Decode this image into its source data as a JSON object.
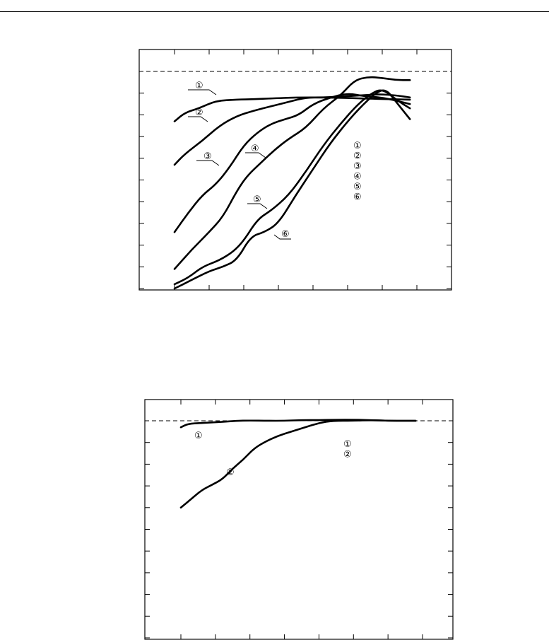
{
  "chart_data": [
    {
      "type": "line",
      "title": "",
      "xlabel": "",
      "ylabel": "",
      "x_ticks": 8,
      "y_ticks": 10,
      "reference_line": "dashed",
      "legend": {
        "placement": "right-center",
        "entries": [
          "①",
          "②",
          "③",
          "④",
          "⑤",
          "⑥"
        ]
      },
      "series": [
        {
          "label": "①",
          "values": [
            [
              0.0,
              0.77
            ],
            [
              0.3,
              0.81
            ],
            [
              0.7,
              0.83
            ],
            [
              1.2,
              0.865
            ],
            [
              1.8,
              0.87
            ],
            [
              2.3,
              0.872
            ],
            [
              2.8,
              0.876
            ],
            [
              3.5,
              0.88
            ],
            [
              4.5,
              0.88
            ],
            [
              5.5,
              0.875
            ],
            [
              6.2,
              0.872
            ],
            [
              6.8,
              0.87
            ]
          ]
        },
        {
          "label": "②",
          "values": [
            [
              0.0,
              0.57
            ],
            [
              0.3,
              0.62
            ],
            [
              0.8,
              0.68
            ],
            [
              1.3,
              0.75
            ],
            [
              1.8,
              0.795
            ],
            [
              2.3,
              0.82
            ],
            [
              2.8,
              0.84
            ],
            [
              3.3,
              0.86
            ],
            [
              3.8,
              0.88
            ],
            [
              4.3,
              0.88
            ],
            [
              4.8,
              0.884
            ],
            [
              5.4,
              0.89
            ],
            [
              5.9,
              0.895
            ],
            [
              6.4,
              0.89
            ],
            [
              6.8,
              0.88
            ]
          ]
        },
        {
          "label": "③",
          "values": [
            [
              0.0,
              0.26
            ],
            [
              0.4,
              0.35
            ],
            [
              0.8,
              0.43
            ],
            [
              1.2,
              0.48
            ],
            [
              1.6,
              0.56
            ],
            [
              2.0,
              0.66
            ],
            [
              2.4,
              0.72
            ],
            [
              2.8,
              0.76
            ],
            [
              3.2,
              0.78
            ],
            [
              3.6,
              0.8
            ],
            [
              4.0,
              0.85
            ],
            [
              4.5,
              0.88
            ],
            [
              5.0,
              0.9
            ],
            [
              5.5,
              0.885
            ],
            [
              6.0,
              0.88
            ],
            [
              6.8,
              0.85
            ]
          ]
        },
        {
          "label": "④",
          "values": [
            [
              0.0,
              0.09
            ],
            [
              0.5,
              0.18
            ],
            [
              1.0,
              0.26
            ],
            [
              1.4,
              0.33
            ],
            [
              1.8,
              0.45
            ],
            [
              2.1,
              0.52
            ],
            [
              2.5,
              0.58
            ],
            [
              2.9,
              0.64
            ],
            [
              3.3,
              0.69
            ],
            [
              3.8,
              0.74
            ],
            [
              4.3,
              0.83
            ],
            [
              4.8,
              0.89
            ],
            [
              5.2,
              0.96
            ],
            [
              5.6,
              0.975
            ],
            [
              6.0,
              0.97
            ],
            [
              6.4,
              0.96
            ],
            [
              6.8,
              0.96
            ]
          ]
        },
        {
          "label": "⑤",
          "values": [
            [
              0.0,
              0.02
            ],
            [
              0.4,
              0.05
            ],
            [
              0.8,
              0.1
            ],
            [
              1.3,
              0.13
            ],
            [
              1.7,
              0.17
            ],
            [
              2.0,
              0.22
            ],
            [
              2.4,
              0.32
            ],
            [
              2.8,
              0.36
            ],
            [
              3.3,
              0.43
            ],
            [
              3.8,
              0.54
            ],
            [
              4.3,
              0.66
            ],
            [
              4.8,
              0.76
            ],
            [
              5.3,
              0.85
            ],
            [
              5.7,
              0.9
            ],
            [
              6.0,
              0.92
            ],
            [
              6.4,
              0.87
            ],
            [
              6.8,
              0.83
            ]
          ]
        },
        {
          "label": "⑥",
          "values": [
            [
              0.0,
              0.0
            ],
            [
              0.5,
              0.04
            ],
            [
              1.0,
              0.08
            ],
            [
              1.4,
              0.1
            ],
            [
              1.8,
              0.13
            ],
            [
              2.2,
              0.24
            ],
            [
              2.6,
              0.26
            ],
            [
              3.0,
              0.3
            ],
            [
              3.5,
              0.43
            ],
            [
              4.0,
              0.55
            ],
            [
              4.5,
              0.67
            ],
            [
              5.0,
              0.77
            ],
            [
              5.4,
              0.84
            ],
            [
              5.8,
              0.9
            ],
            [
              6.1,
              0.92
            ],
            [
              6.4,
              0.86
            ],
            [
              6.8,
              0.78
            ]
          ]
        }
      ]
    },
    {
      "type": "line",
      "title": "",
      "xlabel": "",
      "ylabel": "",
      "x_ticks": 8,
      "y_ticks": 10,
      "reference_line": "dashed",
      "legend": {
        "placement": "right-center",
        "entries": [
          "①",
          "②"
        ]
      },
      "series": [
        {
          "label": "①",
          "values": [
            [
              0.0,
              0.97
            ],
            [
              0.2,
              0.986
            ],
            [
              0.6,
              0.99
            ],
            [
              1.2,
              0.995
            ],
            [
              1.6,
              1.0
            ],
            [
              2.0,
              1.001
            ],
            [
              2.5,
              1.0
            ],
            [
              3.0,
              1.0
            ],
            [
              3.5,
              1.003
            ],
            [
              4.0,
              1.003
            ],
            [
              4.5,
              1.005
            ],
            [
              5.0,
              1.005
            ],
            [
              5.5,
              1.003
            ],
            [
              6.0,
              1.0
            ],
            [
              6.5,
              1.0
            ],
            [
              6.8,
              1.0
            ]
          ]
        },
        {
          "label": "②",
          "values": [
            [
              0.0,
              0.6
            ],
            [
              0.3,
              0.64
            ],
            [
              0.6,
              0.68
            ],
            [
              0.9,
              0.705
            ],
            [
              1.2,
              0.73
            ],
            [
              1.5,
              0.78
            ],
            [
              1.8,
              0.82
            ],
            [
              2.1,
              0.87
            ],
            [
              2.4,
              0.9
            ],
            [
              2.8,
              0.93
            ],
            [
              3.2,
              0.95
            ],
            [
              3.6,
              0.97
            ],
            [
              4.0,
              0.99
            ],
            [
              4.4,
              1.0
            ],
            [
              5.0,
              1.0
            ],
            [
              5.5,
              1.003
            ],
            [
              6.0,
              1.0
            ],
            [
              6.5,
              1.0
            ],
            [
              6.8,
              1.0
            ]
          ]
        }
      ]
    }
  ]
}
